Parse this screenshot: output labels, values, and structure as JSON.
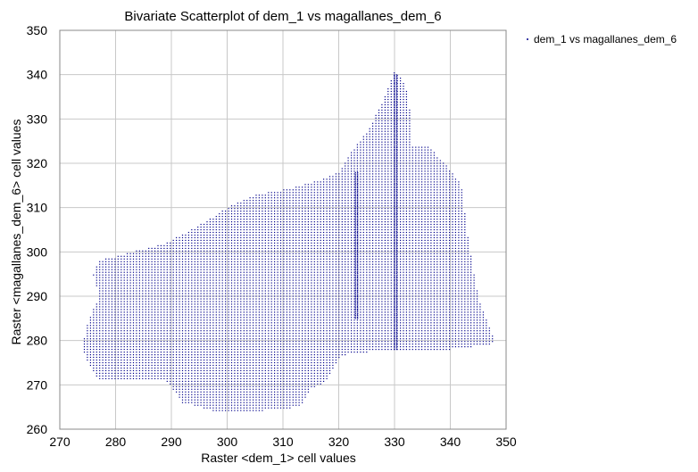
{
  "chart_data": {
    "type": "scatter",
    "title": "Bivariate Scatterplot of dem_1 vs magallanes_dem_6",
    "xlabel": "Raster <dem_1> cell values",
    "ylabel": "Raster <magallanes_dem_6> cell values",
    "xlim": [
      270,
      350
    ],
    "ylim": [
      260,
      350
    ],
    "xticks": [
      270,
      280,
      290,
      300,
      310,
      320,
      330,
      340,
      350
    ],
    "yticks": [
      260,
      270,
      280,
      290,
      300,
      310,
      320,
      330,
      340,
      350
    ],
    "grid": true,
    "legend_position": "top-right",
    "series": [
      {
        "name": "dem_1 vs magallanes_dem_6",
        "color": "#00008b",
        "marker": "dot",
        "outline": [
          [
            274,
            279
          ],
          [
            275,
            284
          ],
          [
            277,
            290
          ],
          [
            276,
            295
          ],
          [
            277,
            298
          ],
          [
            283,
            300
          ],
          [
            289,
            302
          ],
          [
            295,
            306
          ],
          [
            300,
            310
          ],
          [
            305,
            313
          ],
          [
            310,
            314
          ],
          [
            316,
            316
          ],
          [
            320,
            318
          ],
          [
            322,
            322
          ],
          [
            325,
            327
          ],
          [
            328,
            334
          ],
          [
            330,
            341
          ],
          [
            332,
            338
          ],
          [
            333,
            330
          ],
          [
            333,
            324
          ],
          [
            336,
            324
          ],
          [
            339,
            320
          ],
          [
            342,
            315
          ],
          [
            343,
            305
          ],
          [
            344,
            297
          ],
          [
            345,
            290
          ],
          [
            347,
            283
          ],
          [
            348,
            280
          ],
          [
            347,
            279
          ],
          [
            340,
            278
          ],
          [
            330,
            278
          ],
          [
            322,
            277
          ],
          [
            320,
            276
          ],
          [
            318,
            271
          ],
          [
            315,
            269
          ],
          [
            313,
            265
          ],
          [
            305,
            264
          ],
          [
            298,
            264
          ],
          [
            292,
            266
          ],
          [
            289,
            271
          ],
          [
            282,
            271
          ],
          [
            277,
            271
          ],
          [
            275,
            275
          ],
          [
            274,
            279
          ]
        ],
        "features": [
          {
            "x": 323,
            "y": [
              285,
              318
            ]
          },
          {
            "x": 330,
            "y": [
              278,
              340
            ]
          }
        ]
      }
    ]
  }
}
